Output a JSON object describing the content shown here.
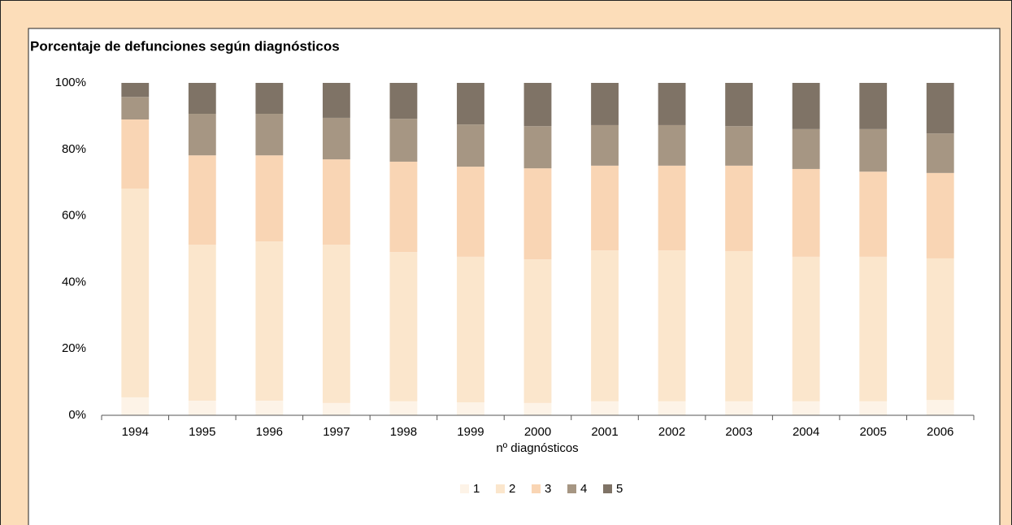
{
  "chart_data": {
    "type": "stacked_bar",
    "title": "Porcentaje de defunciones según diagnósticos",
    "x_label": "nº diagnósticos",
    "categories": [
      "1994",
      "1995",
      "1996",
      "1997",
      "1998",
      "1999",
      "2000",
      "2001",
      "2002",
      "2003",
      "2004",
      "2005",
      "2006"
    ],
    "series": [
      {
        "name": "1",
        "color": "#FDF3E7",
        "values": [
          5.4,
          4.4,
          4.4,
          3.7,
          4.2,
          3.9,
          3.7,
          4.2,
          4.2,
          4.2,
          4.2,
          4.2,
          4.6
        ]
      },
      {
        "name": "2",
        "color": "#FBE6CC",
        "values": [
          62.8,
          46.9,
          47.9,
          47.6,
          44.9,
          43.8,
          43.2,
          45.4,
          45.4,
          45.2,
          43.5,
          43.5,
          42.6
        ]
      },
      {
        "name": "3",
        "color": "#F9D5B4",
        "values": [
          20.8,
          26.9,
          25.9,
          25.7,
          27.2,
          27.1,
          27.4,
          25.5,
          25.5,
          25.7,
          26.4,
          25.6,
          25.7
        ]
      },
      {
        "name": "4",
        "color": "#A69683",
        "values": [
          6.8,
          12.5,
          12.5,
          12.5,
          12.9,
          12.7,
          12.7,
          12.2,
          12.2,
          11.9,
          12.0,
          12.8,
          11.9
        ]
      },
      {
        "name": "5",
        "color": "#7F7366",
        "values": [
          4.2,
          9.3,
          9.3,
          10.5,
          10.8,
          12.5,
          13.0,
          12.7,
          12.7,
          13.0,
          13.9,
          13.9,
          15.2
        ]
      }
    ],
    "ylim": [
      0,
      100
    ],
    "yticks": [
      {
        "value": 0,
        "label": "0%"
      },
      {
        "value": 20,
        "label": "20%"
      },
      {
        "value": 40,
        "label": "40%"
      },
      {
        "value": 60,
        "label": "60%"
      },
      {
        "value": 80,
        "label": "80%"
      },
      {
        "value": 100,
        "label": "100%"
      }
    ],
    "legend": "bottom"
  }
}
